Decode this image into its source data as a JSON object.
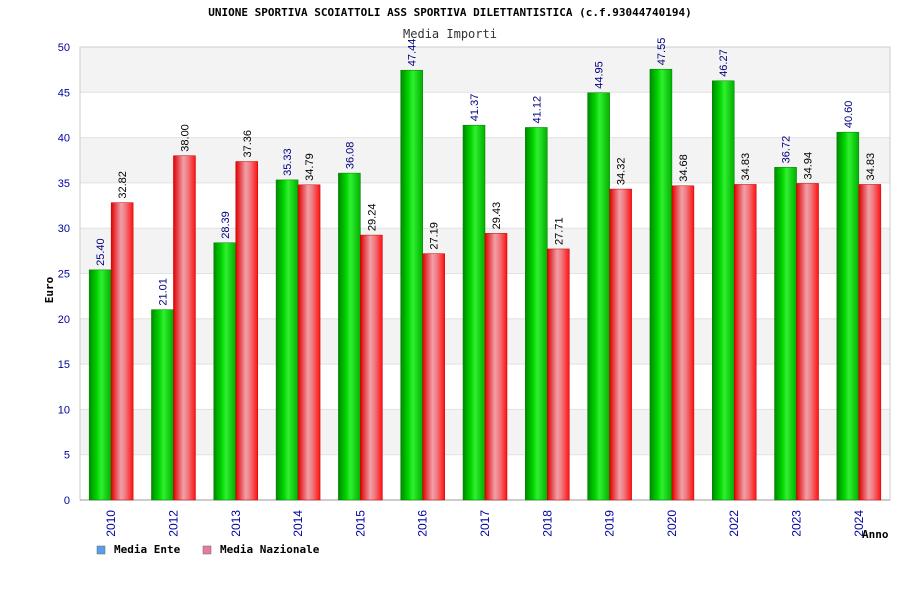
{
  "chart_data": {
    "type": "bar",
    "title": "UNIONE SPORTIVA SCOIATTOLI ASS SPORTIVA DILETTANTISTICA (c.f.93044740194)",
    "subtitle": "Media Importi",
    "xlabel": "Anno",
    "ylabel": "Euro",
    "ylim": [
      0,
      50
    ],
    "yticks": [
      0,
      5,
      10,
      15,
      20,
      25,
      30,
      35,
      40,
      45,
      50
    ],
    "grid": true,
    "legend_position": "bottom-left",
    "categories": [
      "2010",
      "2012",
      "2013",
      "2014",
      "2015",
      "2016",
      "2017",
      "2018",
      "2019",
      "2020",
      "2022",
      "2023",
      "2024"
    ],
    "series": [
      {
        "name": "Media Ente",
        "color": "#00c000",
        "legend_color": "#5a9ee8",
        "values": [
          25.4,
          21.01,
          28.39,
          35.33,
          36.08,
          47.44,
          41.37,
          41.12,
          44.95,
          47.55,
          46.27,
          36.72,
          40.6
        ],
        "labels": [
          "25.40",
          "21.01",
          "28.39",
          "35.33",
          "36.08",
          "47.44",
          "41.37",
          "41.12",
          "44.95",
          "47.55",
          "46.27",
          "36.72",
          "40.60"
        ]
      },
      {
        "name": "Media Nazionale",
        "color": "#ff1a1a",
        "legend_color": "#e87aa0",
        "values": [
          32.82,
          38.0,
          37.36,
          34.79,
          29.24,
          27.19,
          29.43,
          27.71,
          34.32,
          34.68,
          34.83,
          34.94,
          34.83
        ],
        "labels": [
          "32.82",
          "38.00",
          "37.36",
          "34.79",
          "29.24",
          "27.19",
          "29.43",
          "27.71",
          "34.32",
          "34.68",
          "34.83",
          "34.94",
          "34.83"
        ]
      }
    ]
  }
}
